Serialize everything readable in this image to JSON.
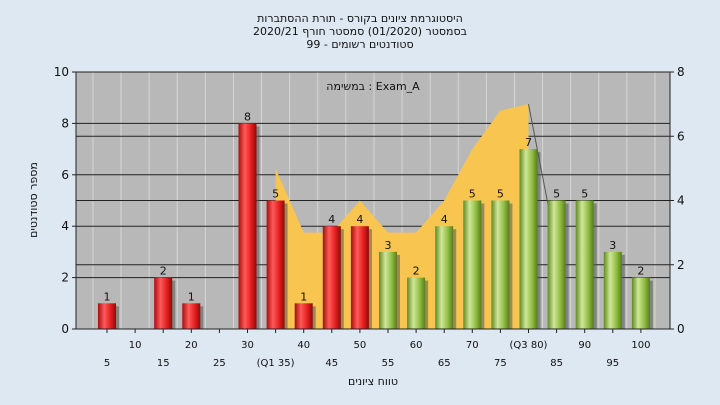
{
  "chart_data": {
    "type": "bar",
    "title_lines": [
      "היסטוגרמת ציונים בקורס - תורת ההסתברות",
      "בסמסטר  (01/2020)  סמסטר חורף  2020/21",
      "סטודנטים רשומים - 99"
    ],
    "exam_label": "במשימה : Exam_A",
    "ylabel": "מספר סטודנטים",
    "xlabel": "טווח ציונים",
    "ylim": [
      0,
      10
    ],
    "y2lim": [
      0,
      8
    ],
    "yticks": [
      "0",
      "2",
      "4",
      "6",
      "8",
      "10"
    ],
    "y2ticks": [
      "0",
      "2",
      "4",
      "6",
      "8"
    ],
    "grid": true,
    "x": [
      5,
      10,
      15,
      20,
      25,
      30,
      35,
      40,
      45,
      50,
      55,
      60,
      65,
      70,
      75,
      80,
      85,
      90,
      95,
      100
    ],
    "x_tick_labels": [
      "5",
      "10",
      "15",
      "20",
      "25",
      "30",
      "(Q1 35)",
      "40",
      "45",
      "50",
      "55",
      "60",
      "65",
      "70",
      "75",
      "(Q3 80)",
      "85",
      "90",
      "95",
      "100"
    ],
    "values": [
      1,
      0,
      2,
      1,
      0,
      8,
      5,
      1,
      4,
      4,
      3,
      2,
      4,
      5,
      5,
      7,
      5,
      5,
      3,
      2
    ],
    "bar_colors": {
      "fail": "#e02020",
      "pass": "#90bc40"
    },
    "pass_from": 55,
    "area": {
      "axis": "secondary",
      "color": "#f7c550",
      "x": [
        35,
        40,
        45,
        50,
        55,
        60,
        65,
        70,
        75,
        80
      ],
      "values": [
        5.0,
        3.0,
        3.0,
        4.0,
        3.0,
        3.0,
        4.0,
        5.6,
        6.8,
        7.0
      ],
      "tail_line": [
        [
          80,
          7.0
        ],
        [
          85,
          2.5
        ]
      ]
    }
  }
}
